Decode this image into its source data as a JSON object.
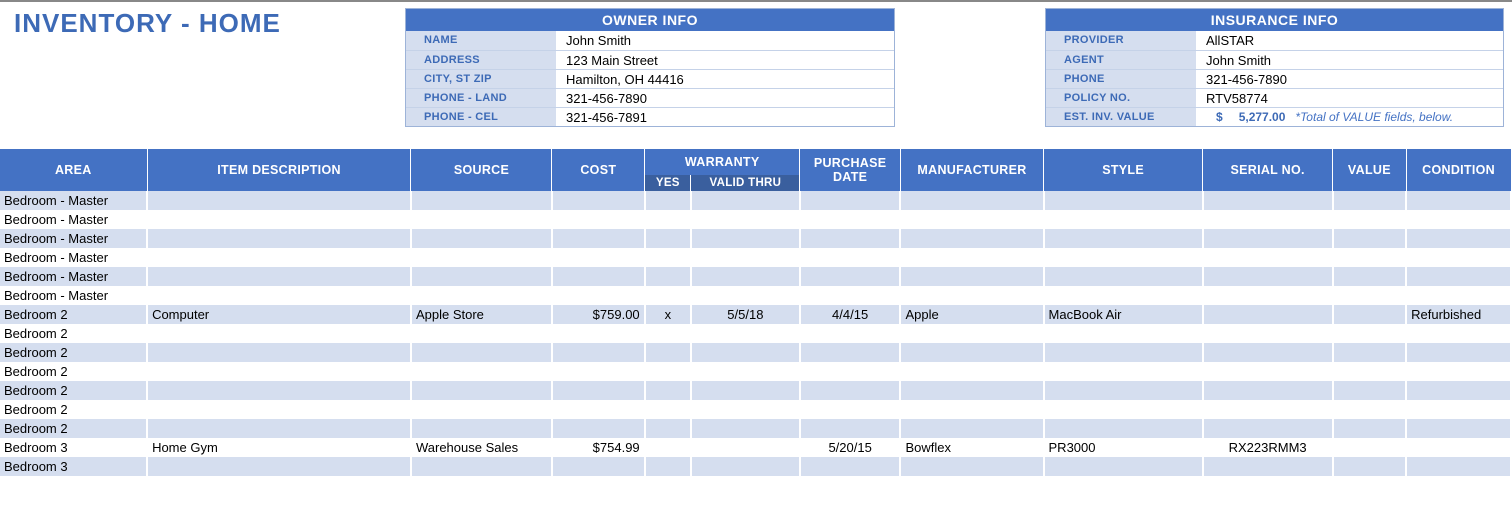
{
  "title": "INVENTORY - HOME",
  "colors": {
    "accent": "#4472c4",
    "accent_dark": "#3a5f9e",
    "label_bg": "#d5deef",
    "label_text": "#3d6ab6",
    "stripe": "#d5deef",
    "border": "#c5d2e8"
  },
  "owner": {
    "header": "OWNER INFO",
    "rows": [
      {
        "label": "NAME",
        "value": "John Smith"
      },
      {
        "label": "ADDRESS",
        "value": "123 Main Street"
      },
      {
        "label": "CITY, ST  ZIP",
        "value": "Hamilton, OH  44416"
      },
      {
        "label": "PHONE - LAND",
        "value": "321-456-7890"
      },
      {
        "label": "PHONE - CEL",
        "value": "321-456-7891"
      }
    ]
  },
  "insurance": {
    "header": "INSURANCE INFO",
    "rows": [
      {
        "label": "PROVIDER",
        "value": "AllSTAR"
      },
      {
        "label": "AGENT",
        "value": "John Smith"
      },
      {
        "label": "PHONE",
        "value": "321-456-7890"
      },
      {
        "label": "POLICY NO.",
        "value": "RTV58774"
      }
    ],
    "est_label": "EST. INV. VALUE",
    "est_currency": "$",
    "est_amount": "5,277.00",
    "est_note": "*Total of VALUE fields, below."
  },
  "table": {
    "headers": {
      "area": "AREA",
      "item": "ITEM DESCRIPTION",
      "source": "SOURCE",
      "cost": "COST",
      "warranty": "WARRANTY",
      "warranty_yes": "YES",
      "warranty_thru": "VALID THRU",
      "purchase_date": "PURCHASE DATE",
      "manufacturer": "MANUFACTURER",
      "style": "STYLE",
      "serial": "SERIAL NO.",
      "value": "VALUE",
      "condition": "CONDITION"
    },
    "rows": [
      {
        "area": "Bedroom - Master",
        "item": "",
        "source": "",
        "cost": "",
        "wyes": "",
        "wthru": "",
        "pdate": "",
        "manu": "",
        "style": "",
        "serial": "",
        "value": "",
        "cond": ""
      },
      {
        "area": "Bedroom - Master",
        "item": "",
        "source": "",
        "cost": "",
        "wyes": "",
        "wthru": "",
        "pdate": "",
        "manu": "",
        "style": "",
        "serial": "",
        "value": "",
        "cond": ""
      },
      {
        "area": "Bedroom - Master",
        "item": "",
        "source": "",
        "cost": "",
        "wyes": "",
        "wthru": "",
        "pdate": "",
        "manu": "",
        "style": "",
        "serial": "",
        "value": "",
        "cond": ""
      },
      {
        "area": "Bedroom - Master",
        "item": "",
        "source": "",
        "cost": "",
        "wyes": "",
        "wthru": "",
        "pdate": "",
        "manu": "",
        "style": "",
        "serial": "",
        "value": "",
        "cond": ""
      },
      {
        "area": "Bedroom - Master",
        "item": "",
        "source": "",
        "cost": "",
        "wyes": "",
        "wthru": "",
        "pdate": "",
        "manu": "",
        "style": "",
        "serial": "",
        "value": "",
        "cond": ""
      },
      {
        "area": "Bedroom - Master",
        "item": "",
        "source": "",
        "cost": "",
        "wyes": "",
        "wthru": "",
        "pdate": "",
        "manu": "",
        "style": "",
        "serial": "",
        "value": "",
        "cond": ""
      },
      {
        "area": "Bedroom 2",
        "item": "Computer",
        "source": "Apple Store",
        "cost": "$759.00",
        "wyes": "x",
        "wthru": "5/5/18",
        "pdate": "4/4/15",
        "manu": "Apple",
        "style": "MacBook Air",
        "serial": "",
        "value": "",
        "cond": "Refurbished"
      },
      {
        "area": "Bedroom 2",
        "item": "",
        "source": "",
        "cost": "",
        "wyes": "",
        "wthru": "",
        "pdate": "",
        "manu": "",
        "style": "",
        "serial": "",
        "value": "",
        "cond": ""
      },
      {
        "area": "Bedroom 2",
        "item": "",
        "source": "",
        "cost": "",
        "wyes": "",
        "wthru": "",
        "pdate": "",
        "manu": "",
        "style": "",
        "serial": "",
        "value": "",
        "cond": ""
      },
      {
        "area": "Bedroom 2",
        "item": "",
        "source": "",
        "cost": "",
        "wyes": "",
        "wthru": "",
        "pdate": "",
        "manu": "",
        "style": "",
        "serial": "",
        "value": "",
        "cond": ""
      },
      {
        "area": "Bedroom 2",
        "item": "",
        "source": "",
        "cost": "",
        "wyes": "",
        "wthru": "",
        "pdate": "",
        "manu": "",
        "style": "",
        "serial": "",
        "value": "",
        "cond": ""
      },
      {
        "area": "Bedroom 2",
        "item": "",
        "source": "",
        "cost": "",
        "wyes": "",
        "wthru": "",
        "pdate": "",
        "manu": "",
        "style": "",
        "serial": "",
        "value": "",
        "cond": ""
      },
      {
        "area": "Bedroom 2",
        "item": "",
        "source": "",
        "cost": "",
        "wyes": "",
        "wthru": "",
        "pdate": "",
        "manu": "",
        "style": "",
        "serial": "",
        "value": "",
        "cond": ""
      },
      {
        "area": "Bedroom 3",
        "item": "Home Gym",
        "source": "Warehouse Sales",
        "cost": "$754.99",
        "wyes": "",
        "wthru": "",
        "pdate": "5/20/15",
        "manu": "Bowflex",
        "style": "PR3000",
        "serial": "RX223RMM3",
        "value": "",
        "cond": ""
      },
      {
        "area": "Bedroom 3",
        "item": "",
        "source": "",
        "cost": "",
        "wyes": "",
        "wthru": "",
        "pdate": "",
        "manu": "",
        "style": "",
        "serial": "",
        "value": "",
        "cond": ""
      }
    ]
  }
}
